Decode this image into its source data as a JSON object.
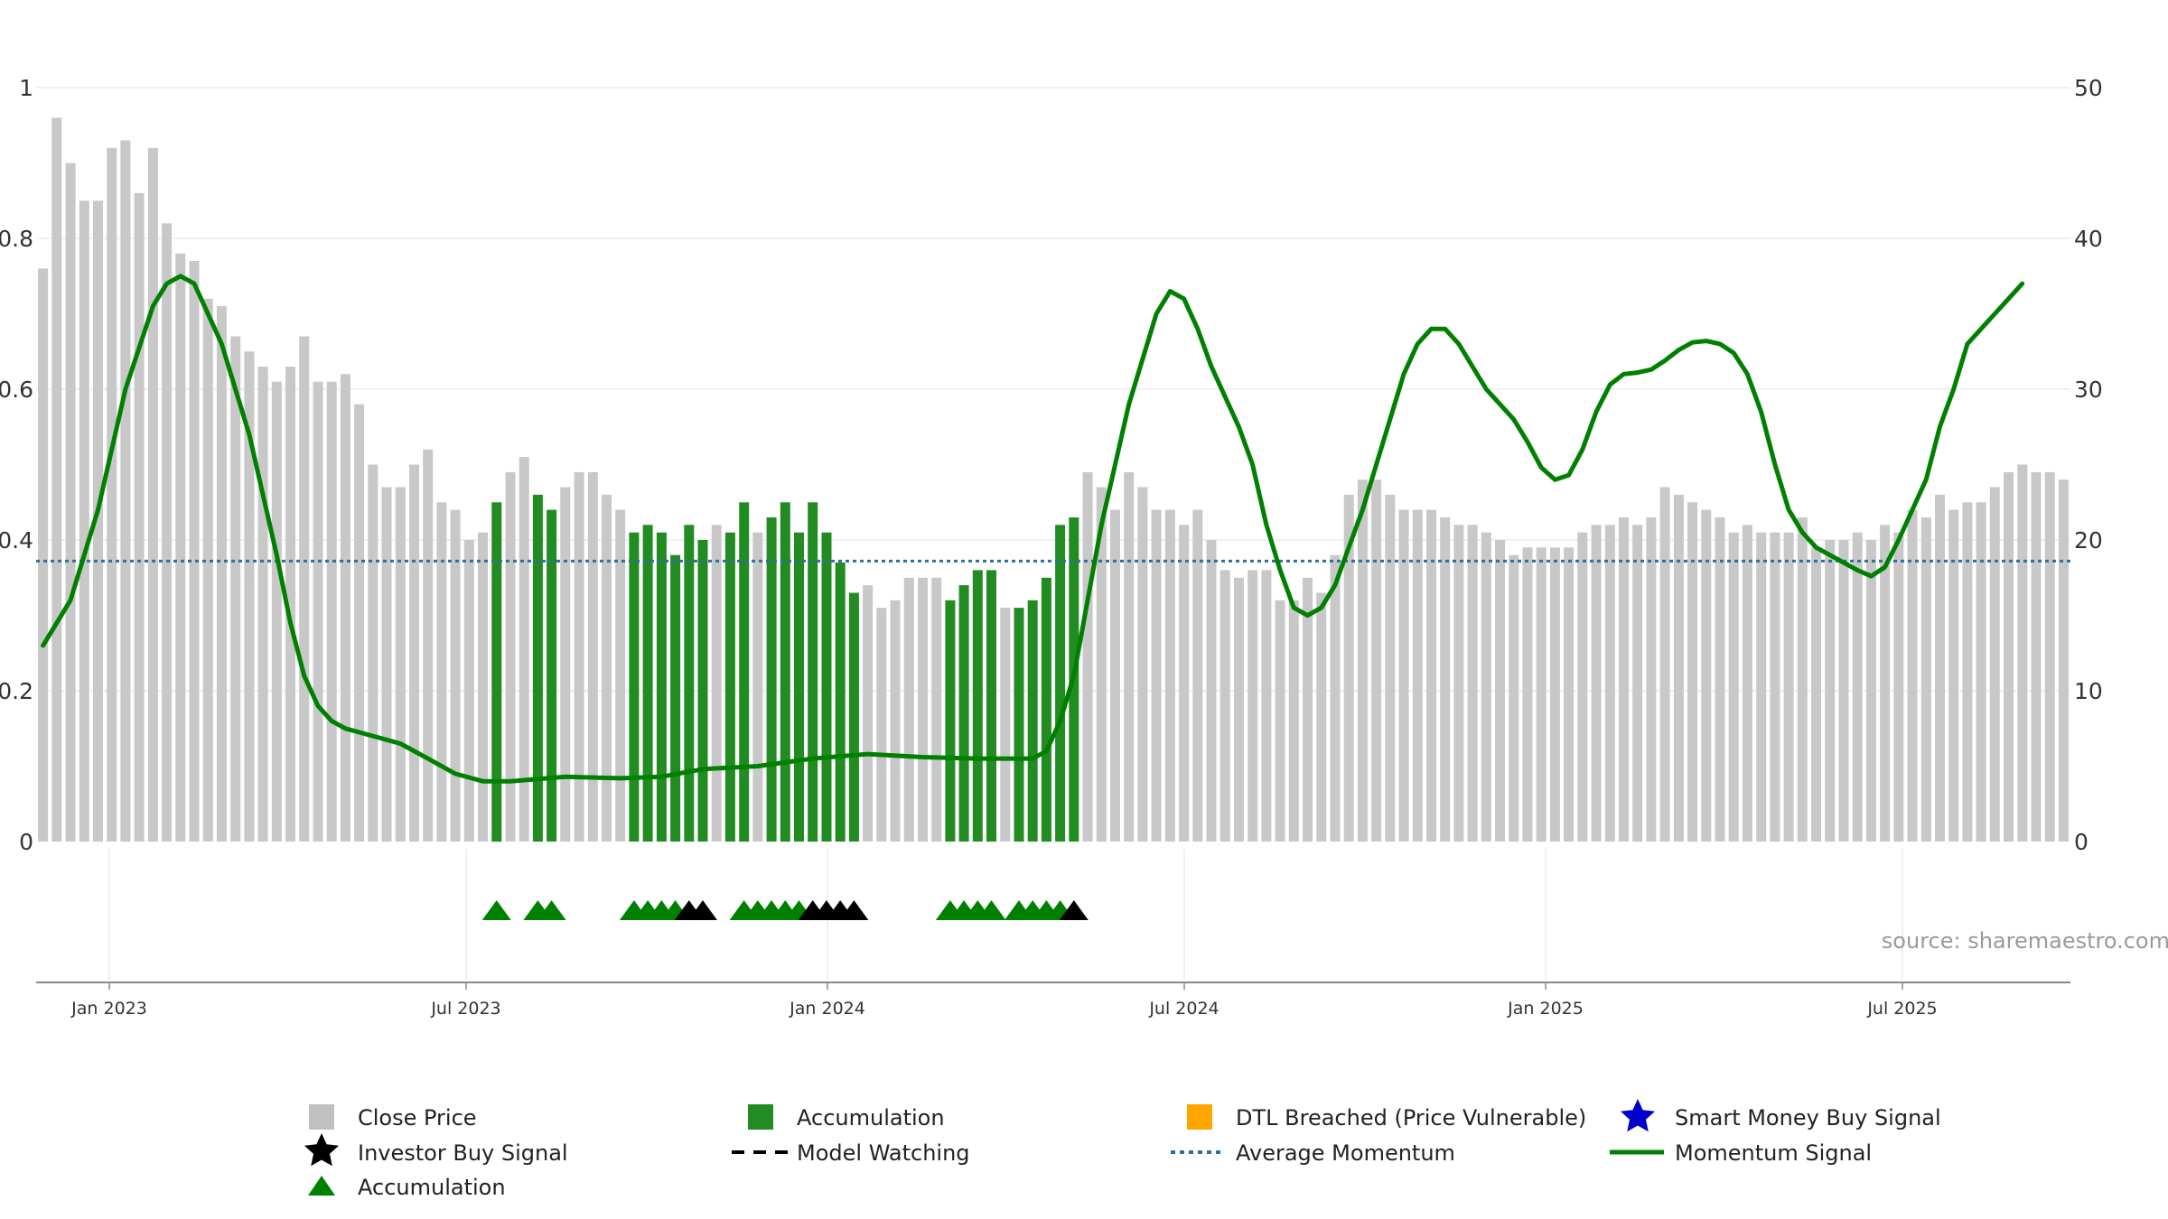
{
  "chart_data": {
    "type": "bar",
    "source": "source: sharemaestro.com",
    "left_axis": {
      "range": [
        0,
        1
      ],
      "ticks": [
        "0",
        "0.2",
        "0.4",
        "0.6",
        "0.8",
        "1"
      ]
    },
    "right_axis": {
      "range": [
        0,
        50
      ],
      "ticks": [
        "0",
        "10",
        "20",
        "30",
        "40",
        "50"
      ]
    },
    "x_ticks": [
      "Jan 2023",
      "Jul 2023",
      "Jan 2024",
      "Jul 2024",
      "Jan 2025",
      "Jul 2025"
    ],
    "grid": true,
    "legend_placement": "bottom",
    "colors": {
      "close_price": "#c8c8c8",
      "accumulation": "#228b22",
      "momentum": "#008000",
      "avg_momentum": "#2f6f9f",
      "investor_buy": "#000000",
      "dtl": "#ffa500",
      "smart_money": "#0000cc"
    },
    "close_price": [
      0.76,
      0.96,
      0.9,
      0.85,
      0.85,
      0.92,
      0.93,
      0.86,
      0.92,
      0.82,
      0.78,
      0.77,
      0.72,
      0.71,
      0.67,
      0.65,
      0.63,
      0.61,
      0.63,
      0.67,
      0.61,
      0.61,
      0.62,
      0.58,
      0.5,
      0.47,
      0.47,
      0.5,
      0.52,
      0.45,
      0.44,
      0.4,
      0.41,
      0.45,
      0.49,
      0.51,
      0.46,
      0.44,
      0.47,
      0.49,
      0.49,
      0.46,
      0.44,
      0.41,
      0.42,
      0.41,
      0.38,
      0.42,
      0.4,
      0.42,
      0.41,
      0.45,
      0.41,
      0.43,
      0.45,
      0.41,
      0.45,
      0.41,
      0.37,
      0.33,
      0.34,
      0.31,
      0.32,
      0.35,
      0.35,
      0.35,
      0.32,
      0.34,
      0.36,
      0.36,
      0.31,
      0.31,
      0.32,
      0.35,
      0.42,
      0.43,
      0.49,
      0.47,
      0.44,
      0.49,
      0.47,
      0.44,
      0.44,
      0.42,
      0.44,
      0.4,
      0.36,
      0.35,
      0.36,
      0.36,
      0.32,
      0.32,
      0.35,
      0.33,
      0.38,
      0.46,
      0.48,
      0.48,
      0.46,
      0.44,
      0.44,
      0.44,
      0.43,
      0.42,
      0.42,
      0.41,
      0.4,
      0.38,
      0.39,
      0.39,
      0.39,
      0.39,
      0.41,
      0.42,
      0.42,
      0.43,
      0.42,
      0.43,
      0.47,
      0.46,
      0.45,
      0.44,
      0.43,
      0.41,
      0.42,
      0.41,
      0.41,
      0.41,
      0.43,
      0.39,
      0.4,
      0.4,
      0.41,
      0.4,
      0.42,
      0.41,
      0.44,
      0.43,
      0.46,
      0.44,
      0.45,
      0.45,
      0.47,
      0.49,
      0.5,
      0.49,
      0.49,
      0.48
    ],
    "accumulation_bars": [
      33,
      36,
      37,
      43,
      44,
      45,
      46,
      47,
      48,
      50,
      51,
      53,
      54,
      55,
      56,
      57,
      58,
      59,
      66,
      67,
      68,
      69,
      71,
      72,
      73,
      74,
      75
    ],
    "accumulation_markers": [
      33,
      36,
      37,
      43,
      44,
      45,
      46,
      51,
      52,
      53,
      54,
      55,
      66,
      67,
      68,
      69,
      71,
      72,
      73,
      74
    ],
    "investor_buy_markers": [
      47,
      48,
      56,
      57,
      58,
      59,
      75
    ],
    "avg_momentum": 18.6,
    "momentum": [
      [
        0,
        13
      ],
      [
        2,
        16
      ],
      [
        4,
        22
      ],
      [
        6,
        30
      ],
      [
        8,
        35.5
      ],
      [
        9,
        37
      ],
      [
        10,
        37.5
      ],
      [
        11,
        37
      ],
      [
        12,
        35
      ],
      [
        13,
        33
      ],
      [
        14,
        30
      ],
      [
        15,
        27
      ],
      [
        16,
        23
      ],
      [
        17,
        19
      ],
      [
        18,
        14.5
      ],
      [
        19,
        11
      ],
      [
        20,
        9
      ],
      [
        21,
        8
      ],
      [
        22,
        7.5
      ],
      [
        24,
        7
      ],
      [
        26,
        6.5
      ],
      [
        28,
        5.5
      ],
      [
        30,
        4.5
      ],
      [
        32,
        4
      ],
      [
        34,
        4
      ],
      [
        38,
        4.3
      ],
      [
        42,
        4.2
      ],
      [
        45,
        4.3
      ],
      [
        48,
        4.8
      ],
      [
        52,
        5
      ],
      [
        56,
        5.5
      ],
      [
        60,
        5.8
      ],
      [
        64,
        5.6
      ],
      [
        68,
        5.5
      ],
      [
        72,
        5.5
      ],
      [
        73,
        6
      ],
      [
        74,
        8
      ],
      [
        75,
        11
      ],
      [
        76,
        16
      ],
      [
        77,
        21
      ],
      [
        78,
        25
      ],
      [
        79,
        29
      ],
      [
        80,
        32
      ],
      [
        81,
        35
      ],
      [
        82,
        36.5
      ],
      [
        83,
        36
      ],
      [
        84,
        34
      ],
      [
        85,
        31.5
      ],
      [
        86,
        29.5
      ],
      [
        87,
        27.5
      ],
      [
        88,
        25
      ],
      [
        89,
        21
      ],
      [
        90,
        18
      ],
      [
        91,
        15.5
      ],
      [
        92,
        15
      ],
      [
        93,
        15.5
      ],
      [
        94,
        17
      ],
      [
        95,
        19.5
      ],
      [
        96,
        22
      ],
      [
        97,
        25
      ],
      [
        98,
        28
      ],
      [
        99,
        31
      ],
      [
        100,
        33
      ],
      [
        101,
        34
      ],
      [
        102,
        34
      ],
      [
        103,
        33
      ],
      [
        104,
        31.5
      ],
      [
        105,
        30
      ],
      [
        106,
        29
      ],
      [
        107,
        28
      ],
      [
        108,
        26.5
      ],
      [
        109,
        24.8
      ],
      [
        110,
        24
      ],
      [
        111,
        24.3
      ],
      [
        112,
        26
      ],
      [
        113,
        28.5
      ],
      [
        114,
        30.3
      ],
      [
        115,
        31
      ],
      [
        116,
        31.1
      ],
      [
        117,
        31.3
      ],
      [
        118,
        31.9
      ],
      [
        119,
        32.6
      ],
      [
        120,
        33.1
      ],
      [
        121,
        33.2
      ],
      [
        122,
        33
      ],
      [
        123,
        32.4
      ],
      [
        124,
        31
      ],
      [
        125,
        28.5
      ],
      [
        126,
        25
      ],
      [
        127,
        22
      ],
      [
        128,
        20.5
      ],
      [
        129,
        19.5
      ],
      [
        130,
        19
      ],
      [
        131,
        18.5
      ],
      [
        132,
        18
      ],
      [
        133,
        17.6
      ],
      [
        134,
        18.2
      ],
      [
        135,
        20
      ],
      [
        136,
        22
      ],
      [
        137,
        24
      ],
      [
        138,
        27.5
      ],
      [
        139,
        30
      ],
      [
        140,
        33
      ],
      [
        141,
        34
      ],
      [
        142,
        35
      ],
      [
        143,
        36
      ],
      [
        144,
        37
      ]
    ]
  },
  "legend": {
    "close_price": "Close Price",
    "accumulation_bar": "Accumulation",
    "dtl": "DTL Breached (Price Vulnerable)",
    "smart_money": "Smart Money Buy Signal",
    "investor_buy": "Investor Buy Signal",
    "model_watching": "Model Watching",
    "avg_momentum": "Average Momentum",
    "momentum_signal": "Momentum Signal",
    "accumulation_marker": "Accumulation"
  }
}
